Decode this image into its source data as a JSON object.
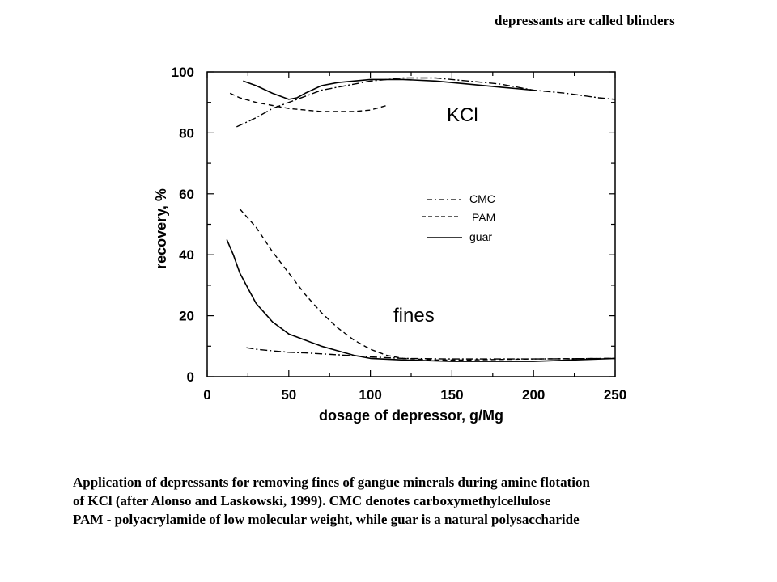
{
  "header_note": "depressants are called blinders",
  "caption": {
    "lines": [
      "Application of depressants for removing fines of gangue minerals during amine flotation",
      "of KCl (after Alonso and Laskowski, 1999). CMC denotes carboxymethylcellulose",
      "PAM - polyacrylamide of low molecular weight, while guar is a natural polysaccharide"
    ]
  },
  "chart_data": {
    "type": "line",
    "xlabel": "dosage of depressor, g/Mg",
    "ylabel": "recovery, %",
    "xlim": [
      0,
      250
    ],
    "ylim": [
      0,
      100
    ],
    "xticks": [
      0,
      50,
      100,
      150,
      200,
      250
    ],
    "yticks": [
      0,
      20,
      40,
      60,
      80,
      100
    ],
    "grid": false,
    "legend": {
      "placement": "center-right",
      "entries": [
        "CMC",
        "PAM",
        "guar"
      ]
    },
    "annotations": [
      "KCl",
      "fines"
    ],
    "series": [
      {
        "name": "CMC",
        "group": "KCl",
        "style": "dash-dot",
        "x": [
          18,
          30,
          40,
          50,
          60,
          70,
          80,
          100,
          120,
          140,
          160,
          180,
          200,
          220,
          240,
          250
        ],
        "y": [
          82,
          85,
          88,
          90,
          92,
          94,
          95,
          97,
          98,
          98,
          97,
          96,
          94,
          93,
          91.5,
          91
        ]
      },
      {
        "name": "PAM",
        "group": "KCl",
        "style": "dashed",
        "x": [
          14,
          20,
          30,
          40,
          50,
          60,
          70,
          80,
          90,
          100,
          110
        ],
        "y": [
          93,
          91.5,
          90,
          89,
          88,
          87.5,
          87,
          87,
          87,
          87.5,
          89
        ]
      },
      {
        "name": "guar",
        "group": "KCl",
        "style": "solid",
        "x": [
          22,
          30,
          40,
          50,
          55,
          60,
          70,
          80,
          90,
          100,
          120,
          140,
          160,
          180,
          200
        ],
        "y": [
          97,
          95.5,
          93,
          91,
          91.5,
          93,
          95.5,
          96.5,
          97,
          97.5,
          97.5,
          97,
          96,
          95,
          94
        ]
      },
      {
        "name": "CMC",
        "group": "fines",
        "style": "dash-dot",
        "x": [
          24,
          30,
          40,
          50,
          60,
          80,
          100,
          120,
          150,
          200,
          250
        ],
        "y": [
          9.5,
          9,
          8.5,
          8,
          7.8,
          7.2,
          6.5,
          6,
          5.8,
          5.8,
          6
        ]
      },
      {
        "name": "PAM",
        "group": "fines",
        "style": "dashed",
        "x": [
          20,
          30,
          40,
          50,
          60,
          70,
          80,
          90,
          100,
          110,
          120,
          140,
          160,
          200,
          250
        ],
        "y": [
          55,
          49,
          41,
          34,
          27,
          21,
          16,
          12,
          9,
          7,
          6,
          5.5,
          5.5,
          5.8,
          6
        ]
      },
      {
        "name": "guar",
        "group": "fines",
        "style": "solid",
        "x": [
          12,
          16,
          20,
          25,
          30,
          35,
          40,
          50,
          60,
          70,
          80,
          90,
          100,
          120,
          150,
          200,
          250
        ],
        "y": [
          45,
          40,
          34,
          29,
          24,
          21,
          18,
          14,
          12,
          10,
          8.5,
          7,
          6,
          5.5,
          5,
          5,
          6
        ]
      }
    ]
  }
}
